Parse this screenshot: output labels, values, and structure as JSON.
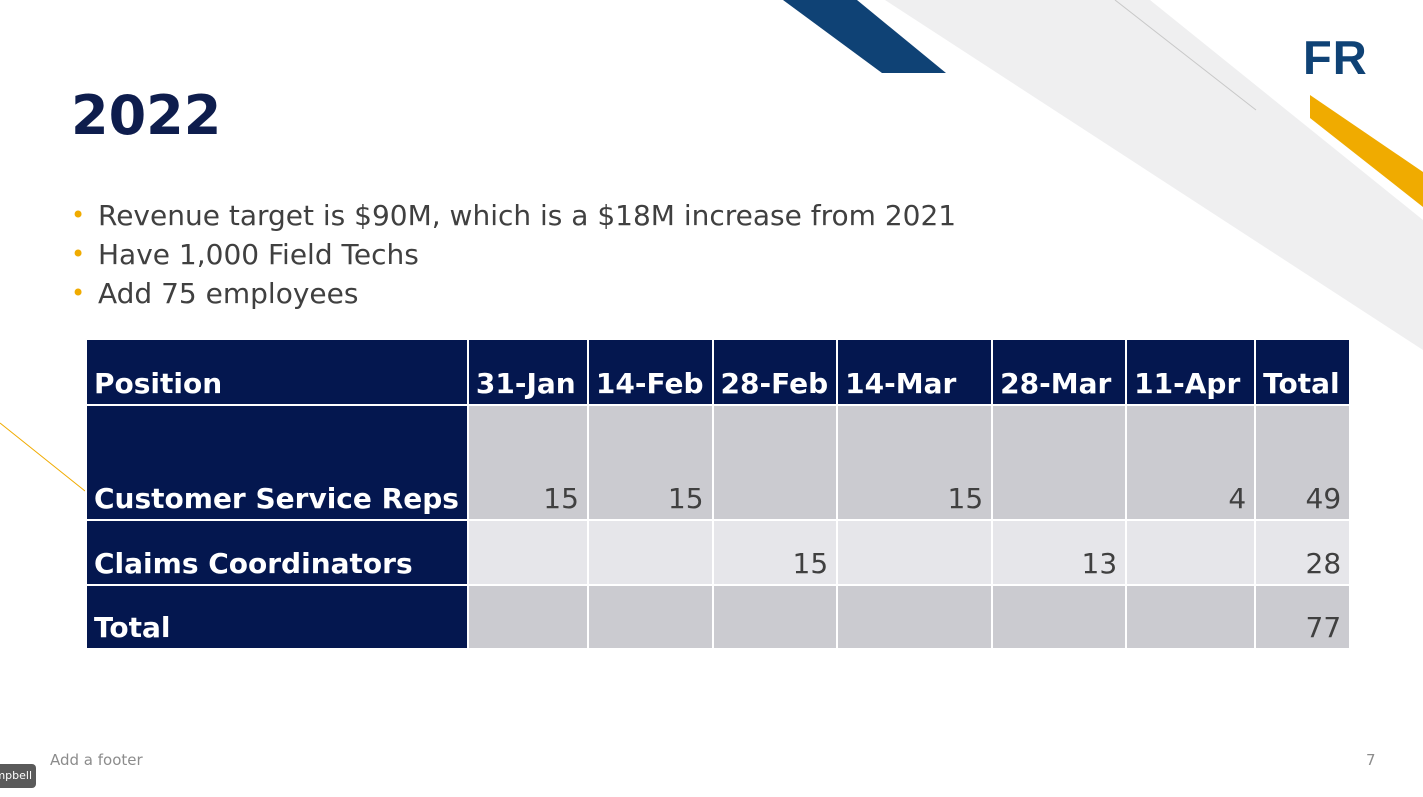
{
  "slide": {
    "logo_text": "FR",
    "title": "2022",
    "bullets": [
      "Revenue target is $90M, which is a $18M increase from 2021",
      "Have 1,000 Field Techs",
      "Add 75 employees"
    ],
    "bullet_color": "#f0ab00",
    "accent_colors": {
      "navy": "#0f4275",
      "gold": "#f0ab00",
      "table_header": "#04174f"
    }
  },
  "table": {
    "headers": [
      "Position",
      "31-Jan",
      "14-Feb",
      "28-Feb",
      "14-Mar",
      "28-Mar",
      "11-Apr",
      "Total"
    ],
    "rows": [
      {
        "position": "Customer Service Reps",
        "cells": [
          "15",
          "15",
          "",
          "15",
          "",
          "4",
          "49"
        ]
      },
      {
        "position": "Claims Coordinators",
        "cells": [
          "",
          "",
          "15",
          "",
          "13",
          "",
          "28"
        ]
      },
      {
        "position": "Total",
        "cells": [
          "",
          "",
          "",
          "",
          "",
          "",
          "77"
        ]
      }
    ]
  },
  "footer": {
    "text": "Add a footer",
    "page_number": "7"
  },
  "presenter_tag": {
    "text": "mpbell"
  }
}
